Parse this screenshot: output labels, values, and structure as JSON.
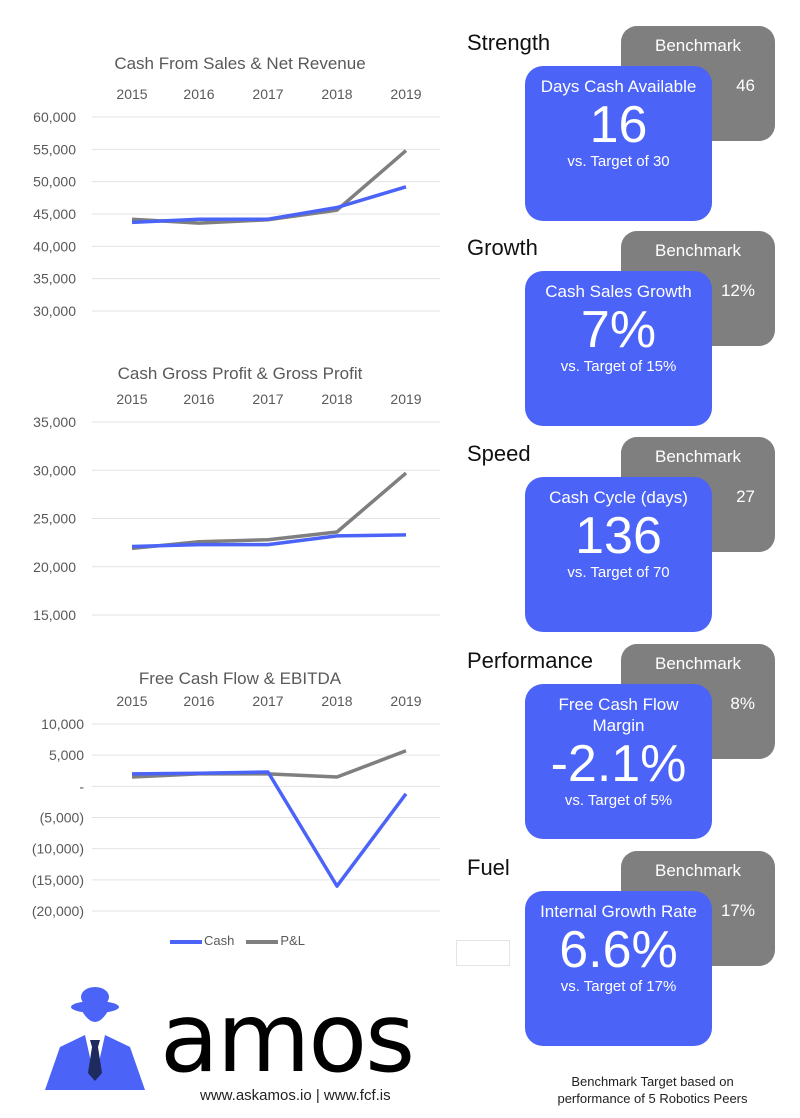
{
  "colors": {
    "cash": "#4b63f7",
    "pl": "#7f7f7f",
    "benchmark_bg": "#7f7f7f",
    "card_bg": "#4b63f7"
  },
  "chart_data": [
    {
      "type": "line",
      "title": "Cash From Sales & Net Revenue",
      "categories": [
        "2015",
        "2016",
        "2017",
        "2018",
        "2019"
      ],
      "yticks": [
        "60,000",
        "55,000",
        "50,000",
        "45,000",
        "40,000",
        "35,000",
        "30,000"
      ],
      "ylim": [
        30000,
        60000
      ],
      "series": [
        {
          "name": "Cash",
          "values": [
            43700,
            44200,
            44200,
            46000,
            49200
          ]
        },
        {
          "name": "P&L",
          "values": [
            44200,
            43600,
            44100,
            45600,
            54800
          ]
        }
      ]
    },
    {
      "type": "line",
      "title": "Cash Gross Profit & Gross Profit",
      "categories": [
        "2015",
        "2016",
        "2017",
        "2018",
        "2019"
      ],
      "yticks": [
        "35,000",
        "30,000",
        "25,000",
        "20,000",
        "15,000"
      ],
      "ylim": [
        15000,
        35000
      ],
      "series": [
        {
          "name": "Cash",
          "values": [
            22100,
            22300,
            22300,
            23200,
            23300
          ]
        },
        {
          "name": "P&L",
          "values": [
            21900,
            22600,
            22800,
            23600,
            29700
          ]
        }
      ]
    },
    {
      "type": "line",
      "title": "Free Cash Flow & EBITDA",
      "categories": [
        "2015",
        "2016",
        "2017",
        "2018",
        "2019"
      ],
      "yticks": [
        "10,000",
        "5,000",
        "-",
        "(5,000)",
        "(10,000)",
        "(15,000)",
        "(20,000)"
      ],
      "ylim": [
        -20000,
        10000
      ],
      "series": [
        {
          "name": "Cash",
          "values": [
            2000,
            2100,
            2300,
            -16000,
            -1200
          ]
        },
        {
          "name": "P&L",
          "values": [
            1500,
            2000,
            2000,
            1500,
            5700
          ]
        }
      ],
      "legend": [
        "Cash",
        "P&L"
      ],
      "legend_position": "bottom"
    }
  ],
  "metrics": [
    {
      "heading": "Strength",
      "benchmark_label": "Benchmark",
      "benchmark_value": "46",
      "label": "Days Cash Available",
      "value": "16",
      "target": "vs. Target of 30"
    },
    {
      "heading": "Growth",
      "benchmark_label": "Benchmark",
      "benchmark_value": "12%",
      "label": "Cash Sales Growth",
      "value": "7%",
      "target": "vs. Target of 15%"
    },
    {
      "heading": "Speed",
      "benchmark_label": "Benchmark",
      "benchmark_value": "27",
      "label": "Cash Cycle (days)",
      "value": "136",
      "target": "vs. Target of 70"
    },
    {
      "heading": "Performance",
      "benchmark_label": "Benchmark",
      "benchmark_value": "8%",
      "label": "Free Cash Flow Margin",
      "value": "-2.1%",
      "target": "vs. Target of 5%"
    },
    {
      "heading": "Fuel",
      "benchmark_label": "Benchmark",
      "benchmark_value": "17%",
      "label": "Internal Growth Rate",
      "value": "6.6%",
      "target": "vs. Target of 17%"
    }
  ],
  "footer": {
    "logo_text": "amos",
    "urls": "www.askamos.io | www.fcf.is",
    "note": "Benchmark Target based on performance of 5 Robotics Peers"
  }
}
